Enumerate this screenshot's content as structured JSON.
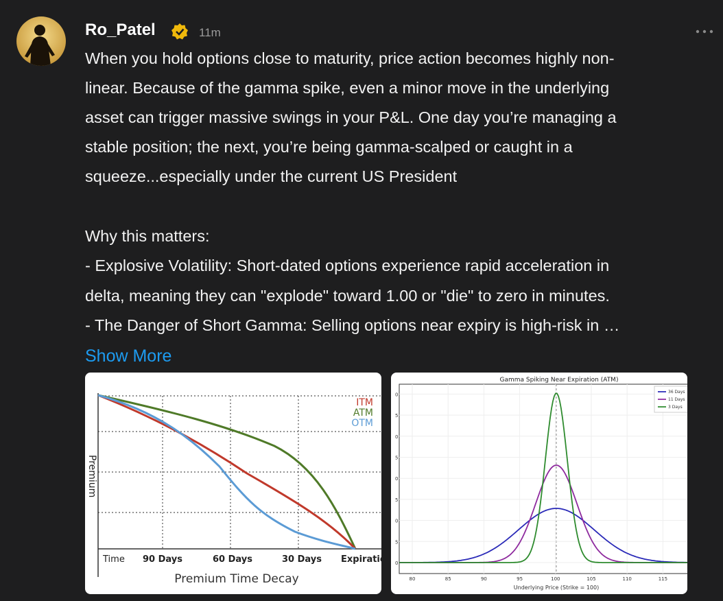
{
  "post": {
    "author": "Ro_Patel",
    "time": "11m",
    "lines": [
      "When you hold options close to maturity, price action becomes highly non-",
      "linear. Because of the gamma spike, even a minor move in the underlying",
      "asset can trigger massive swings in your P&L. One day you’re managing a",
      "stable position; the next, you’re being gamma-scalped or caught in a",
      "squeeze...especially under the current US President",
      "Why this matters:",
      "- Explosive Volatility: Short-dated options experience rapid acceleration in",
      "delta, meaning they can \"explode\" toward 1.00 or \"die\" to zero in minutes.",
      "- The Danger of Short Gamma: Selling options near expiry is high-risk in …"
    ],
    "show_more": "Show More"
  },
  "image_left": {
    "title": "Premium Time Decay",
    "y_label": "Premium",
    "x_labels": [
      "Time",
      "90 Days",
      "60 Days",
      "30 Days",
      "Expiration"
    ],
    "legend": [
      "ITM",
      "ATM",
      "OTM"
    ]
  },
  "image_right": {
    "title": "Gamma Spiking Near Expiration (ATM)",
    "x_label": "Underlying Price (Strike = 100)",
    "x_ticks": [
      "80",
      "85",
      "90",
      "95",
      "100",
      "105",
      "110",
      "115"
    ],
    "y_ticks": [
      "0",
      "5",
      "0",
      "5",
      "0",
      "5",
      "0",
      "5",
      "0"
    ],
    "legend": [
      "36 Days",
      "11 Days",
      "3 Days"
    ]
  }
}
